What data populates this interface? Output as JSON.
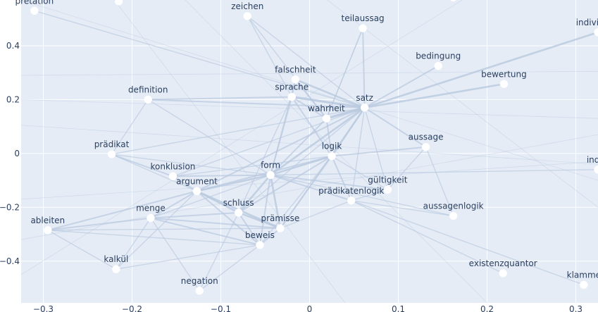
{
  "chart_data": {
    "type": "scatter",
    "title": "",
    "xlabel": "",
    "ylabel": "",
    "xlim": [
      -0.325,
      0.325
    ],
    "ylim": [
      -0.555,
      0.57
    ],
    "grid": true,
    "xticks": [
      -0.3,
      -0.2,
      -0.1,
      0,
      0.1,
      0.2,
      0.3
    ],
    "xtick_labels": [
      "−0.3",
      "−0.2",
      "−0.1",
      "0",
      "0.1",
      "0.2",
      "0.3"
    ],
    "yticks": [
      -0.4,
      -0.2,
      0,
      0.2,
      0.4
    ],
    "ytick_labels": [
      "−0.4",
      "−0.2",
      "0",
      "0.2",
      "0.4"
    ],
    "nodes": [
      {
        "label": "pretation",
        "x": -0.31,
        "y": 0.53
      },
      {
        "label": "",
        "x": -0.215,
        "y": 0.565
      },
      {
        "label": "",
        "x": 0.162,
        "y": 0.58
      },
      {
        "label": "zeichen",
        "x": -0.07,
        "y": 0.51
      },
      {
        "label": "teilaussag",
        "x": 0.06,
        "y": 0.465
      },
      {
        "label": "individuen",
        "x": 0.325,
        "y": 0.45
      },
      {
        "label": "bedingung",
        "x": 0.145,
        "y": 0.325
      },
      {
        "label": "falschheit",
        "x": -0.016,
        "y": 0.275
      },
      {
        "label": "bewertung",
        "x": 0.219,
        "y": 0.258
      },
      {
        "label": "definition",
        "x": -0.182,
        "y": 0.2
      },
      {
        "label": "sprache",
        "x": -0.02,
        "y": 0.21
      },
      {
        "label": "satz",
        "x": 0.062,
        "y": 0.17
      },
      {
        "label": "wahrheit",
        "x": 0.019,
        "y": 0.13
      },
      {
        "label": "prädikat",
        "x": -0.223,
        "y": -0.003
      },
      {
        "label": "aussage",
        "x": 0.131,
        "y": 0.024
      },
      {
        "label": "logik",
        "x": 0.025,
        "y": -0.01
      },
      {
        "label": "indivi",
        "x": 0.325,
        "y": -0.06
      },
      {
        "label": "konklusion",
        "x": -0.154,
        "y": -0.085
      },
      {
        "label": "form",
        "x": -0.044,
        "y": -0.08
      },
      {
        "label": "argument",
        "x": -0.127,
        "y": -0.14
      },
      {
        "label": "gültigkeit",
        "x": 0.088,
        "y": -0.135
      },
      {
        "label": "prädikatenlogik",
        "x": 0.047,
        "y": -0.175
      },
      {
        "label": "schluss",
        "x": -0.08,
        "y": -0.22
      },
      {
        "label": "menge",
        "x": -0.179,
        "y": -0.24
      },
      {
        "label": "ableiten",
        "x": -0.295,
        "y": -0.285
      },
      {
        "label": "aussagenlogik",
        "x": 0.162,
        "y": -0.232
      },
      {
        "label": "prämisse",
        "x": -0.033,
        "y": -0.278
      },
      {
        "label": "beweis",
        "x": -0.056,
        "y": -0.34
      },
      {
        "label": "kalkül",
        "x": -0.218,
        "y": -0.43
      },
      {
        "label": "existenzquantor",
        "x": 0.218,
        "y": -0.445
      },
      {
        "label": "negation",
        "x": -0.124,
        "y": -0.51
      },
      {
        "label": "klamme",
        "x": 0.309,
        "y": -0.488
      }
    ],
    "edges": [
      [
        "satz",
        "wahrheit",
        4
      ],
      [
        "satz",
        "sprache",
        4
      ],
      [
        "satz",
        "falschheit",
        3
      ],
      [
        "satz",
        "logik",
        3
      ],
      [
        "satz",
        "form",
        3
      ],
      [
        "satz",
        "bewertung",
        3
      ],
      [
        "satz",
        "teilaussag",
        2
      ],
      [
        "satz",
        "bedingung",
        2
      ],
      [
        "satz",
        "individuen",
        3
      ],
      [
        "satz",
        "aussage",
        2
      ],
      [
        "satz",
        "definition",
        2
      ],
      [
        "satz",
        "zeichen",
        1
      ],
      [
        "satz",
        "prädikatenlogik",
        1
      ],
      [
        "satz",
        "argument",
        2
      ],
      [
        "satz",
        "konklusion",
        1
      ],
      [
        "satz",
        "prämisse",
        1
      ],
      [
        "satz",
        "schluss",
        1
      ],
      [
        "satz",
        "gültigkeit",
        1
      ],
      [
        "satz",
        "prädikat",
        1
      ],
      [
        "satz",
        "pretation",
        1
      ],
      [
        "wahrheit",
        "sprache",
        2
      ],
      [
        "wahrheit",
        "falschheit",
        2
      ],
      [
        "wahrheit",
        "logik",
        2
      ],
      [
        "wahrheit",
        "form",
        2
      ],
      [
        "wahrheit",
        "teilaussag",
        1
      ],
      [
        "sprache",
        "falschheit",
        2
      ],
      [
        "sprache",
        "definition",
        2
      ],
      [
        "sprache",
        "zeichen",
        1
      ],
      [
        "sprache",
        "logik",
        2
      ],
      [
        "sprache",
        "form",
        2
      ],
      [
        "sprache",
        "schluss",
        1
      ],
      [
        "logik",
        "form",
        3
      ],
      [
        "logik",
        "aussage",
        2
      ],
      [
        "logik",
        "argument",
        2
      ],
      [
        "logik",
        "prädikatenlogik",
        2
      ],
      [
        "logik",
        "gültigkeit",
        1
      ],
      [
        "logik",
        "prämisse",
        2
      ],
      [
        "logik",
        "beweis",
        1
      ],
      [
        "logik",
        "schluss",
        2
      ],
      [
        "logik",
        "konklusion",
        1
      ],
      [
        "form",
        "argument",
        3
      ],
      [
        "form",
        "schluss",
        3
      ],
      [
        "form",
        "prämisse",
        3
      ],
      [
        "form",
        "konklusion",
        2
      ],
      [
        "form",
        "prädikatenlogik",
        2
      ],
      [
        "form",
        "gültigkeit",
        2
      ],
      [
        "form",
        "beweis",
        2
      ],
      [
        "form",
        "aussagenlogik",
        1
      ],
      [
        "form",
        "prädikat",
        1
      ],
      [
        "form",
        "menge",
        1
      ],
      [
        "form",
        "indivi",
        1
      ],
      [
        "argument",
        "schluss",
        3
      ],
      [
        "argument",
        "prämisse",
        3
      ],
      [
        "argument",
        "konklusion",
        2
      ],
      [
        "argument",
        "menge",
        2
      ],
      [
        "argument",
        "ableiten",
        2
      ],
      [
        "argument",
        "prädikat",
        1
      ],
      [
        "argument",
        "beweis",
        2
      ],
      [
        "argument",
        "kalkül",
        1
      ],
      [
        "schluss",
        "prämisse",
        3
      ],
      [
        "schluss",
        "beweis",
        2
      ],
      [
        "schluss",
        "menge",
        2
      ],
      [
        "schluss",
        "negation",
        1
      ],
      [
        "menge",
        "prämisse",
        2
      ],
      [
        "menge",
        "ableiten",
        2
      ],
      [
        "menge",
        "beweis",
        2
      ],
      [
        "menge",
        "kalkül",
        1
      ],
      [
        "menge",
        "negation",
        1
      ],
      [
        "beweis",
        "prämisse",
        2
      ],
      [
        "beweis",
        "kalkül",
        1
      ],
      [
        "beweis",
        "ableiten",
        1
      ],
      [
        "beweis",
        "negation",
        1
      ],
      [
        "prädikat",
        "definition",
        1
      ],
      [
        "prädikat",
        "konklusion",
        2
      ],
      [
        "prädikatenlogik",
        "aussagenlogik",
        1
      ],
      [
        "prädikatenlogik",
        "existenzquantor",
        1
      ],
      [
        "prädikatenlogik",
        "gültigkeit",
        1
      ],
      [
        "prädikatenlogik",
        "prämisse",
        1
      ],
      [
        "prädikatenlogik",
        "klamme",
        1
      ],
      [
        "ableiten",
        "kalkül",
        1
      ],
      [
        "ableiten",
        "prämisse",
        1
      ],
      [
        "aussage",
        "aussagenlogik",
        1
      ],
      [
        "aussage",
        "gültigkeit",
        1
      ],
      [
        "falschheit",
        "form",
        1
      ],
      [
        "definition",
        "form",
        1
      ],
      [
        "teilaussag",
        "wahrheit",
        1
      ],
      [
        "zeichen",
        "wahrheit",
        1
      ]
    ],
    "faint_lines": [
      [
        [
          -0.325,
          0.29
        ],
        [
          0.325,
          0.305
        ]
      ],
      [
        [
          -0.325,
          0.2
        ],
        [
          0.325,
          0.13
        ]
      ],
      [
        [
          -0.325,
          0.105
        ],
        [
          0.325,
          -0.04
        ]
      ],
      [
        [
          -0.325,
          -0.17
        ],
        [
          0.325,
          -0.03
        ]
      ],
      [
        [
          -0.325,
          -0.32
        ],
        [
          0.325,
          0.07
        ]
      ],
      [
        [
          -0.22,
          0.57
        ],
        [
          0.04,
          -0.555
        ]
      ],
      [
        [
          -0.14,
          0.57
        ],
        [
          0.2,
          -0.555
        ]
      ],
      [
        [
          0.02,
          0.57
        ],
        [
          0.325,
          -0.2
        ]
      ],
      [
        [
          0.172,
          0.57
        ],
        [
          -0.325,
          -0.45
        ]
      ],
      [
        [
          -0.325,
          0.57
        ],
        [
          0.325,
          -0.1
        ]
      ]
    ],
    "colors": {
      "plot_bg": "#e5ecf6",
      "grid": "#ffffff",
      "edge": "#b8c8de",
      "node": "#ffffff",
      "text": "#2a3f5f"
    }
  }
}
